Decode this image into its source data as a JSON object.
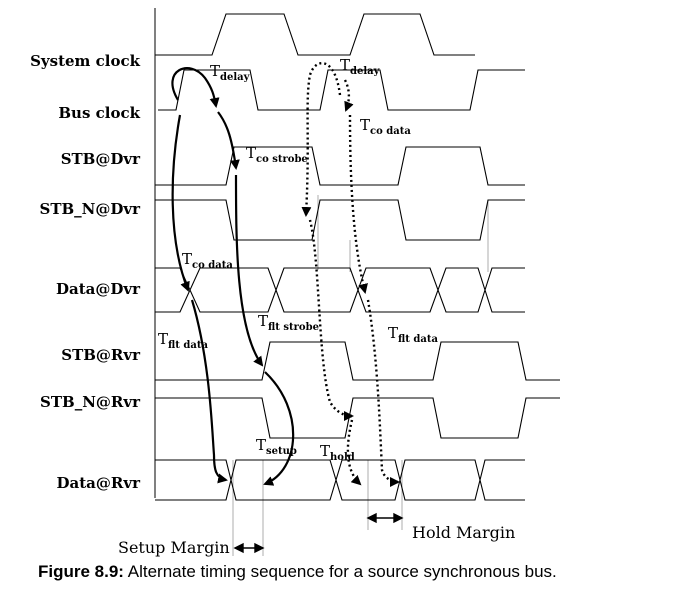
{
  "signals": [
    {
      "name": "System clock"
    },
    {
      "name": "Bus clock"
    },
    {
      "name": "STB@Dvr"
    },
    {
      "name": "STB_N@Dvr"
    },
    {
      "name": "Data@Dvr"
    },
    {
      "name": "STB@Rvr"
    },
    {
      "name": "STB_N@Rvr"
    },
    {
      "name": "Data@Rvr"
    }
  ],
  "timing_labels": [
    {
      "base": "T",
      "sub": "delay"
    },
    {
      "base": "T",
      "sub": "delay"
    },
    {
      "base": "T",
      "sub": "co data"
    },
    {
      "base": "T",
      "sub": "co strobe"
    },
    {
      "base": "T",
      "sub": "co data"
    },
    {
      "base": "T",
      "sub": "flt strobe"
    },
    {
      "base": "T",
      "sub": "flt data"
    },
    {
      "base": "T",
      "sub": "flt data"
    },
    {
      "base": "T",
      "sub": "setup"
    },
    {
      "base": "T",
      "sub": "hold"
    }
  ],
  "margins": {
    "setup": "Setup Margin",
    "hold": "Hold Margin"
  },
  "caption": {
    "prefix": "Figure 8.9:",
    "text": " Alternate timing sequence for a source synchronous bus."
  },
  "colors": {
    "line": "#000000",
    "guide": "#9a9a9a",
    "background": "#ffffff"
  }
}
